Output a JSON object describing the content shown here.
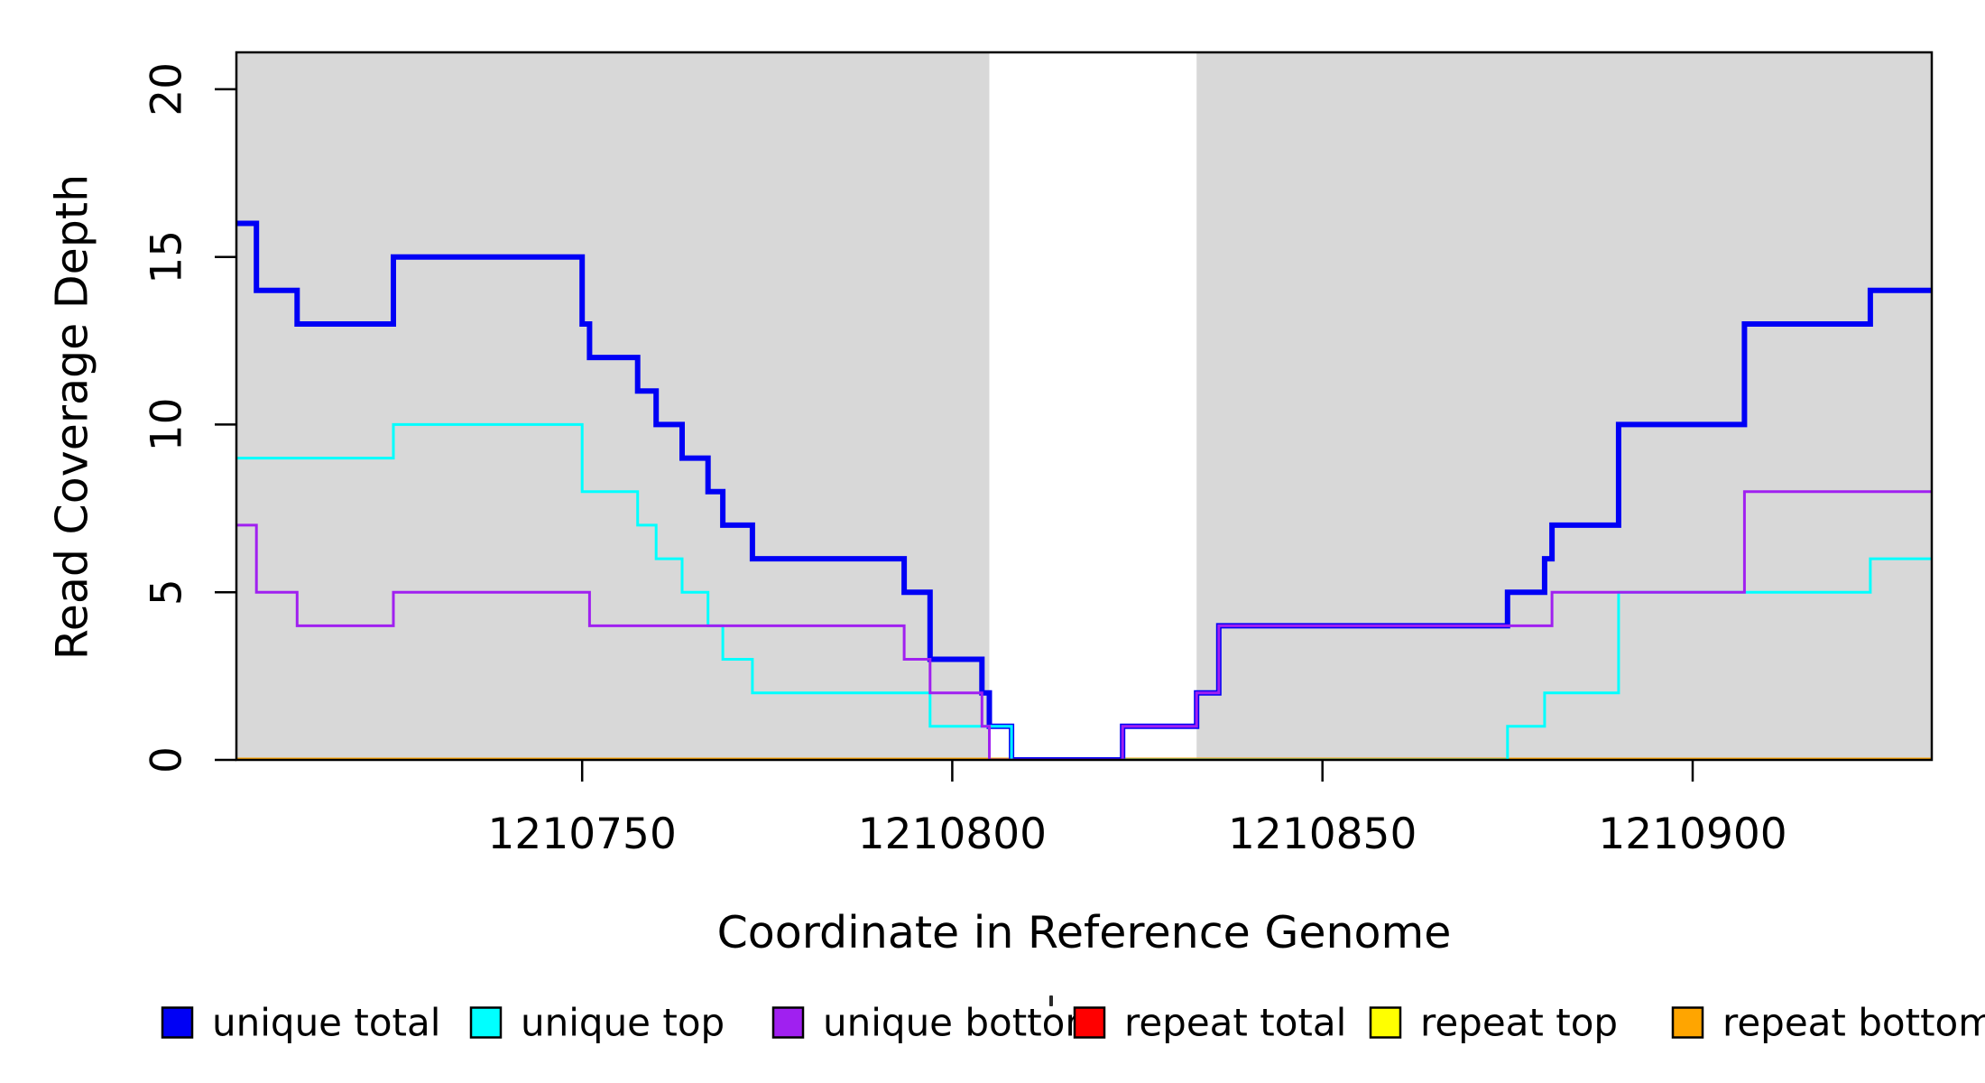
{
  "chart_data": {
    "type": "line",
    "step": true,
    "title": "",
    "xlabel": "Coordinate in Reference Genome",
    "ylabel": "Read Coverage Depth",
    "xlim": [
      1210703.3,
      1210932.3
    ],
    "ylim": [
      0,
      21.1
    ],
    "grid": false,
    "x_ticks": {
      "values": [
        1210750,
        1210800,
        1210850,
        1210900
      ],
      "labels": [
        "1210750",
        "1210800",
        "1210850",
        "1210900"
      ]
    },
    "y_ticks": {
      "values": [
        0,
        5,
        10,
        15,
        20
      ],
      "labels": [
        "0",
        "5",
        "10",
        "15",
        "20"
      ]
    },
    "background_shading": {
      "color": "#d8d8d8",
      "regions": [
        [
          1210703.3,
          1210805
        ],
        [
          1210833,
          1210932.3
        ]
      ]
    },
    "series": [
      {
        "name": "repeat total",
        "color": "#ff0000",
        "lwd": 3,
        "points": [
          [
            1210703.3,
            0
          ]
        ]
      },
      {
        "name": "repeat top",
        "color": "#ffff00",
        "lwd": 3,
        "points": [
          [
            1210703.3,
            0
          ]
        ]
      },
      {
        "name": "repeat bottom",
        "color": "#ffa500",
        "lwd": 5,
        "points": [
          [
            1210703.3,
            0
          ]
        ]
      },
      {
        "name": "unique total",
        "color": "#0000f5",
        "lwd": 6,
        "points": [
          [
            1210703.3,
            16
          ],
          [
            1210706,
            14
          ],
          [
            1210711.5,
            13
          ],
          [
            1210724.5,
            15
          ],
          [
            1210750,
            13
          ],
          [
            1210751,
            12
          ],
          [
            1210757.5,
            11
          ],
          [
            1210760,
            10
          ],
          [
            1210763.5,
            9
          ],
          [
            1210767,
            8
          ],
          [
            1210769,
            7
          ],
          [
            1210773,
            6
          ],
          [
            1210793.5,
            5
          ],
          [
            1210797,
            3
          ],
          [
            1210804,
            2
          ],
          [
            1210805,
            1
          ],
          [
            1210808,
            0
          ],
          [
            1210823,
            1
          ],
          [
            1210833,
            2
          ],
          [
            1210836,
            4
          ],
          [
            1210875,
            5
          ],
          [
            1210880,
            6
          ],
          [
            1210881,
            7
          ],
          [
            1210890,
            10
          ],
          [
            1210907,
            13
          ],
          [
            1210924,
            14
          ]
        ]
      },
      {
        "name": "unique top",
        "color": "#00ffff",
        "lwd": 3,
        "points": [
          [
            1210703.3,
            9
          ],
          [
            1210724.5,
            10
          ],
          [
            1210750,
            8
          ],
          [
            1210757.5,
            7
          ],
          [
            1210760,
            6
          ],
          [
            1210763.5,
            5
          ],
          [
            1210767,
            4
          ],
          [
            1210769,
            3
          ],
          [
            1210773,
            2
          ],
          [
            1210797,
            1
          ],
          [
            1210808,
            0
          ],
          [
            1210875,
            1
          ],
          [
            1210880,
            2
          ],
          [
            1210890,
            5
          ],
          [
            1210924,
            6
          ]
        ]
      },
      {
        "name": "unique bottom",
        "color": "#a020f0",
        "lwd": 3,
        "points": [
          [
            1210703.3,
            7
          ],
          [
            1210706,
            5
          ],
          [
            1210711.5,
            4
          ],
          [
            1210724.5,
            5
          ],
          [
            1210751,
            4
          ],
          [
            1210793.5,
            3
          ],
          [
            1210797,
            2
          ],
          [
            1210804,
            1
          ],
          [
            1210805,
            0
          ],
          [
            1210823,
            1
          ],
          [
            1210833,
            2
          ],
          [
            1210836,
            4
          ],
          [
            1210881,
            5
          ],
          [
            1210907,
            8
          ]
        ]
      }
    ],
    "legend": {
      "position": "bottom",
      "entries": [
        {
          "label": "unique total",
          "color": "#0000f5"
        },
        {
          "label": "unique top",
          "color": "#00ffff"
        },
        {
          "label": "unique bottom",
          "color": "#a020f0"
        },
        {
          "label": "repeat total",
          "color": "#ff0000"
        },
        {
          "label": "repeat top",
          "color": "#ffff00"
        },
        {
          "label": "repeat bottom",
          "color": "#ffa500"
        }
      ]
    },
    "axis_color": "#000000"
  }
}
